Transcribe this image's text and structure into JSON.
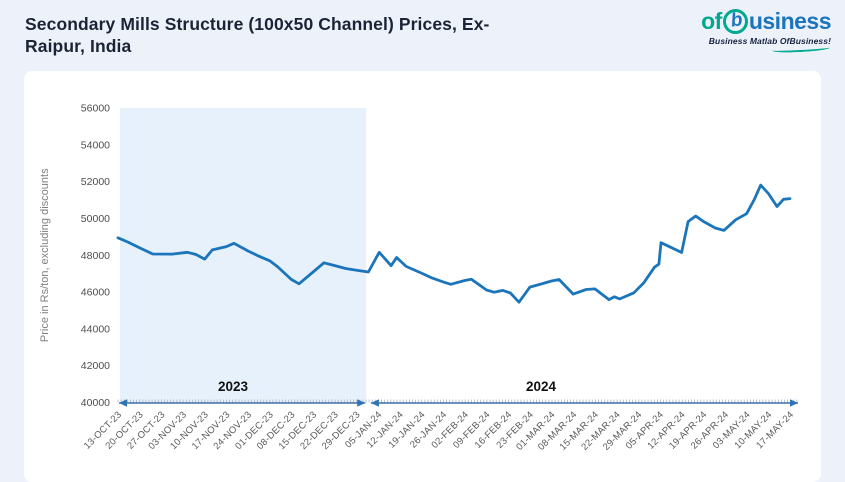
{
  "header": {
    "title": "Secondary Mills Structure (100x50 Channel) Prices, Ex-Raipur, India",
    "logo": {
      "part_of": "of",
      "part_b": "b",
      "part_rest": "usiness",
      "tagline": "Business Matlab OfBusiness!",
      "teal": "#00a98f",
      "blue": "#1c75bc"
    }
  },
  "chart_data": {
    "type": "line",
    "title": "Secondary Mills Structure (100x50 Channel) Prices, Ex-Raipur, India",
    "xlabel": "",
    "ylabel": "Price in Rs/ton, excluding discounts",
    "ylim": [
      40000,
      56000
    ],
    "ytick_step": 2000,
    "y_tick_labels": [
      "40000",
      "42000",
      "44000",
      "46000",
      "48000",
      "50000",
      "52000",
      "54000",
      "56000"
    ],
    "x_tick_labels": [
      "13-OCT-23",
      "20-OCT-23",
      "27-OCT-23",
      "03-NOV-23",
      "10-NOV-23",
      "17-NOV-23",
      "24-NOV-23",
      "01-DEC-23",
      "08-DEC-23",
      "15-DEC-23",
      "22-DEC-23",
      "29-DEC-23",
      "05-JAN-24",
      "12-JAN-24",
      "19-JAN-24",
      "26-JAN-24",
      "02-FEB-24",
      "09-FEB-24",
      "16-FEB-24",
      "23-FEB-24",
      "01-MAR-24",
      "08-MAR-24",
      "15-MAR-24",
      "22-MAR-24",
      "29-MAR-24",
      "05-APR-24",
      "12-APR-24",
      "19-APR-24",
      "26-APR-24",
      "03-MAY-24",
      "10-MAY-24",
      "17-MAY-24"
    ],
    "series_name": "Price in Rs/ton",
    "points_x_unit": "weeks since 13-OCT-23 (fractional x = mid-week observations)",
    "points": [
      [
        0,
        48950
      ],
      [
        0.5,
        48690
      ],
      [
        1,
        48400
      ],
      [
        1.6,
        48070
      ],
      [
        2.5,
        48060
      ],
      [
        3.2,
        48160
      ],
      [
        3.6,
        48040
      ],
      [
        4,
        47790
      ],
      [
        4.35,
        48290
      ],
      [
        5,
        48470
      ],
      [
        5.35,
        48650
      ],
      [
        6,
        48230
      ],
      [
        6.5,
        47950
      ],
      [
        7,
        47700
      ],
      [
        7.35,
        47390
      ],
      [
        8,
        46680
      ],
      [
        8.35,
        46450
      ],
      [
        9,
        47090
      ],
      [
        9.5,
        47590
      ],
      [
        10,
        47440
      ],
      [
        10.5,
        47280
      ],
      [
        11,
        47190
      ],
      [
        11.55,
        47090
      ],
      [
        12.05,
        48160
      ],
      [
        12.6,
        47430
      ],
      [
        12.85,
        47880
      ],
      [
        13.3,
        47390
      ],
      [
        14,
        47030
      ],
      [
        14.5,
        46760
      ],
      [
        15,
        46550
      ],
      [
        15.35,
        46420
      ],
      [
        16,
        46630
      ],
      [
        16.3,
        46700
      ],
      [
        17,
        46110
      ],
      [
        17.35,
        45990
      ],
      [
        17.75,
        46090
      ],
      [
        18.1,
        45950
      ],
      [
        18.5,
        45450
      ],
      [
        19,
        46270
      ],
      [
        19.5,
        46430
      ],
      [
        20,
        46600
      ],
      [
        20.35,
        46680
      ],
      [
        21,
        45890
      ],
      [
        21.6,
        46140
      ],
      [
        22,
        46170
      ],
      [
        22.65,
        45590
      ],
      [
        22.9,
        45740
      ],
      [
        23.15,
        45630
      ],
      [
        23.8,
        45960
      ],
      [
        24.25,
        46500
      ],
      [
        24.75,
        47350
      ],
      [
        24.95,
        47520
      ],
      [
        25.05,
        48680
      ],
      [
        25.5,
        48430
      ],
      [
        26,
        48150
      ],
      [
        26.3,
        49830
      ],
      [
        26.65,
        50130
      ],
      [
        27,
        49840
      ],
      [
        27.55,
        49480
      ],
      [
        27.95,
        49350
      ],
      [
        28.5,
        49930
      ],
      [
        29,
        50260
      ],
      [
        29.35,
        51020
      ],
      [
        29.65,
        51810
      ],
      [
        30,
        51360
      ],
      [
        30.4,
        50650
      ],
      [
        30.7,
        51040
      ],
      [
        31,
        51080
      ]
    ],
    "year_bands": [
      {
        "label": "2023",
        "from": "13-OCT-23",
        "to": "29-DEC-23",
        "shaded": true
      },
      {
        "label": "2024",
        "from": "05-JAN-24",
        "to": "17-MAY-24",
        "shaded": false
      }
    ],
    "legend": null,
    "grid": false,
    "colors": {
      "line": "#1b75bb",
      "band_2023_fill": "#e7f1fb",
      "arrow_head": "#2e74b5",
      "arrow_shaft": "#3f6fa8",
      "tick_label": "#595959",
      "y_label": "#4d4d4d",
      "axis_title": "#7f7f7f",
      "band_label": "#111111"
    }
  }
}
